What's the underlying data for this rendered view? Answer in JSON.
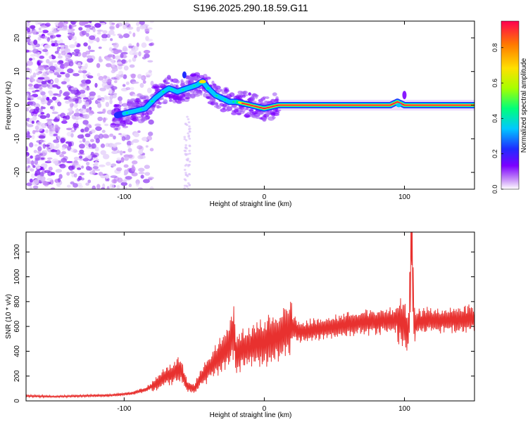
{
  "title": "S196.2025.290.18.59.G11",
  "chart_data": [
    {
      "id": "spectrogram",
      "type": "heatmap",
      "xlabel": "Height of straight line (km)",
      "ylabel": "Frequency (Hz)",
      "xlim": [
        -170,
        150
      ],
      "ylim": [
        -25,
        25
      ],
      "xticks": [
        -100,
        0,
        100
      ],
      "yticks": [
        -20,
        -10,
        0,
        10,
        20
      ],
      "grid": false,
      "ridge": {
        "x": [
          -105,
          -95,
          -85,
          -78,
          -72,
          -68,
          -62,
          -55,
          -48,
          -44,
          -40,
          -35,
          -30,
          -25,
          -20,
          -15,
          -10,
          -5,
          0,
          5,
          10,
          20,
          40,
          60,
          80,
          90,
          95,
          100,
          110,
          130,
          150
        ],
        "frequency": [
          -3,
          -2,
          -1,
          2,
          4,
          5,
          4,
          5,
          6,
          7,
          5,
          3,
          2,
          1,
          1,
          0.5,
          0,
          -0.5,
          -1,
          -0.5,
          0,
          0,
          0,
          0,
          0,
          0,
          1,
          0,
          0,
          0,
          0
        ]
      },
      "colorbar": {
        "label": "Normalized spectral amplitude",
        "min": 0,
        "max": 0.95,
        "ticks": [
          "0.0",
          "0.2",
          "0.4",
          "0.6",
          "0.8"
        ],
        "colors": [
          "#ffffff",
          "#c58cf7",
          "#7b00ff",
          "#1f2cff",
          "#00c8ff",
          "#00ff7a",
          "#a6ff00",
          "#ffe000",
          "#ff7a00",
          "#ff0050"
        ]
      }
    },
    {
      "id": "snr",
      "type": "line",
      "xlabel": "Height of straight line (km)",
      "ylabel": "SNR (10 * v/v)",
      "xlim": [
        -170,
        150
      ],
      "ylim": [
        0,
        1360
      ],
      "xticks": [
        -100,
        0,
        100
      ],
      "yticks": [
        0,
        200,
        400,
        600,
        800,
        1000,
        1200
      ],
      "grid": false,
      "series": [
        {
          "name": "SNR",
          "color": "#e8312f",
          "x": [
            -170,
            -150,
            -130,
            -110,
            -95,
            -85,
            -75,
            -70,
            -65,
            -60,
            -55,
            -50,
            -45,
            -40,
            -35,
            -30,
            -25,
            -22,
            -20,
            -15,
            -10,
            -5,
            0,
            5,
            10,
            15,
            20,
            25,
            30,
            40,
            50,
            60,
            70,
            80,
            90,
            95,
            100,
            103,
            105,
            107,
            110,
            120,
            130,
            140,
            150
          ],
          "y": [
            40,
            35,
            40,
            45,
            60,
            90,
            150,
            200,
            220,
            260,
            120,
            100,
            180,
            260,
            320,
            380,
            440,
            580,
            380,
            420,
            440,
            470,
            480,
            500,
            520,
            560,
            600,
            560,
            560,
            580,
            600,
            620,
            640,
            640,
            650,
            660,
            620,
            560,
            1340,
            600,
            640,
            650,
            650,
            660,
            660
          ]
        }
      ]
    }
  ]
}
